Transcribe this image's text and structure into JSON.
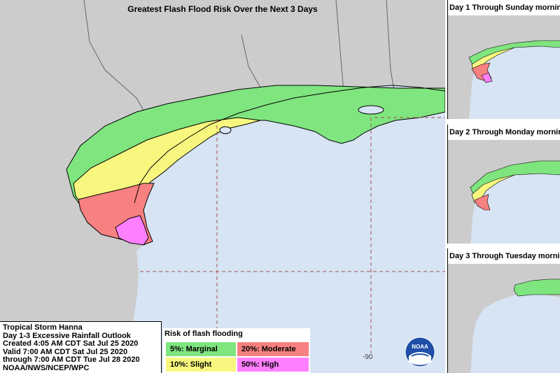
{
  "title": "Greatest Flash Flood Risk Over the Next 3 Days",
  "insets": [
    {
      "title": "Day 1 Through Sunday mornin"
    },
    {
      "title": "Day 2 Through Monday mornin"
    },
    {
      "title": "Day 3 Through Tuesday mornin"
    }
  ],
  "info": {
    "storm": "Tropical Storm Hanna",
    "product": "Day 1-3 Excessive Rainfall Outlook",
    "created": "Created 4:05 AM CDT Sat Jul 25 2020",
    "valid": "Valid 7:00 AM CDT Sat Jul 25 2020",
    "through": "through 7:00 AM CDT Tue Jul 28 2020",
    "agency": "NOAA/NWS/NCEP/WPC"
  },
  "legend": {
    "title": "Risk of flash flooding",
    "marginal": "5%: Marginal",
    "moderate": "20%: Moderate",
    "slight": "10%: Slight",
    "high": "50%: High"
  },
  "lon_label": "-90",
  "logo_text": "NOAA",
  "colors": {
    "water": "#d6e4f3",
    "land": "#cccccc",
    "marginal": "#7fe57f",
    "slight": "#f7f77f",
    "moderate": "#f78080",
    "high": "#ff80ff"
  }
}
